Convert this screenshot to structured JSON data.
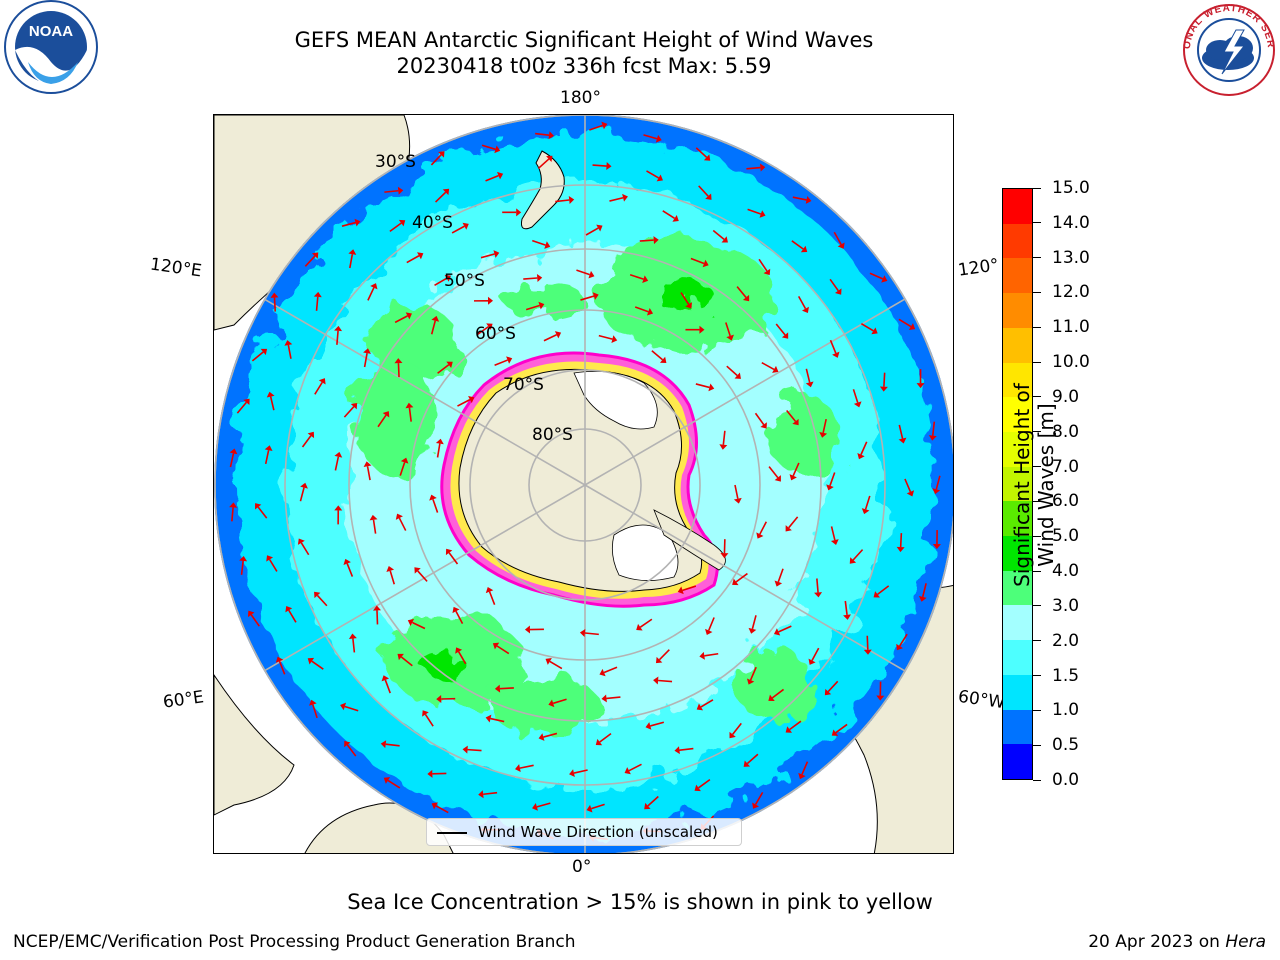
{
  "title": {
    "line1": "GEFS MEAN Antarctic Significant Height of Wind Waves",
    "line2": "20230418 t00z 336h fcst   Max: 5.59"
  },
  "map": {
    "projection": "south-polar-stereographic",
    "longitude_labels": {
      "top": "180°",
      "bottom": "0°",
      "upper_left": "120°E",
      "lower_left": "60°E",
      "upper_right": "120°",
      "lower_right": "60°W"
    },
    "latitude_labels": [
      "30°S",
      "40°S",
      "50°S",
      "60°S",
      "70°S",
      "80°S"
    ],
    "legend": {
      "label": "Wind Wave Direction (unscaled)"
    },
    "colors": {
      "land": "#efecd7",
      "antarctica": "#efecd7",
      "ice_shelf": "#ffffff",
      "arrow": "#e60000",
      "grid": "#b3b3b3",
      "sea_ice_edge": "#ff3fd0"
    }
  },
  "colorbar": {
    "title": "Significant Height of Wind Waves [m]",
    "ticks": [
      "0.0",
      "0.5",
      "1.0",
      "1.5",
      "2.0",
      "3.0",
      "4.0",
      "5.0",
      "6.0",
      "7.0",
      "8.0",
      "9.0",
      "10.0",
      "11.0",
      "12.0",
      "13.0",
      "14.0",
      "15.0"
    ],
    "colors": [
      "#0000ff",
      "#0073ff",
      "#00e5ff",
      "#4dffff",
      "#a3ffff",
      "#4dff7a",
      "#00e600",
      "#5aeb00",
      "#c2f500",
      "#e5ff00",
      "#ffff00",
      "#ffe600",
      "#ffbf00",
      "#ff8c00",
      "#ff6400",
      "#ff3a00",
      "#ff0000"
    ]
  },
  "subnote": "Sea Ice Concentration > 15% is shown in pink to yellow",
  "footer": {
    "left": "NCEP/EMC/Verification Post Processing Product Generation Branch",
    "right_prefix": "20 Apr 2023 on ",
    "right_machine": "Hera"
  },
  "logos": {
    "left": "NOAA",
    "right": "NATIONAL WEATHER SERVICE"
  }
}
